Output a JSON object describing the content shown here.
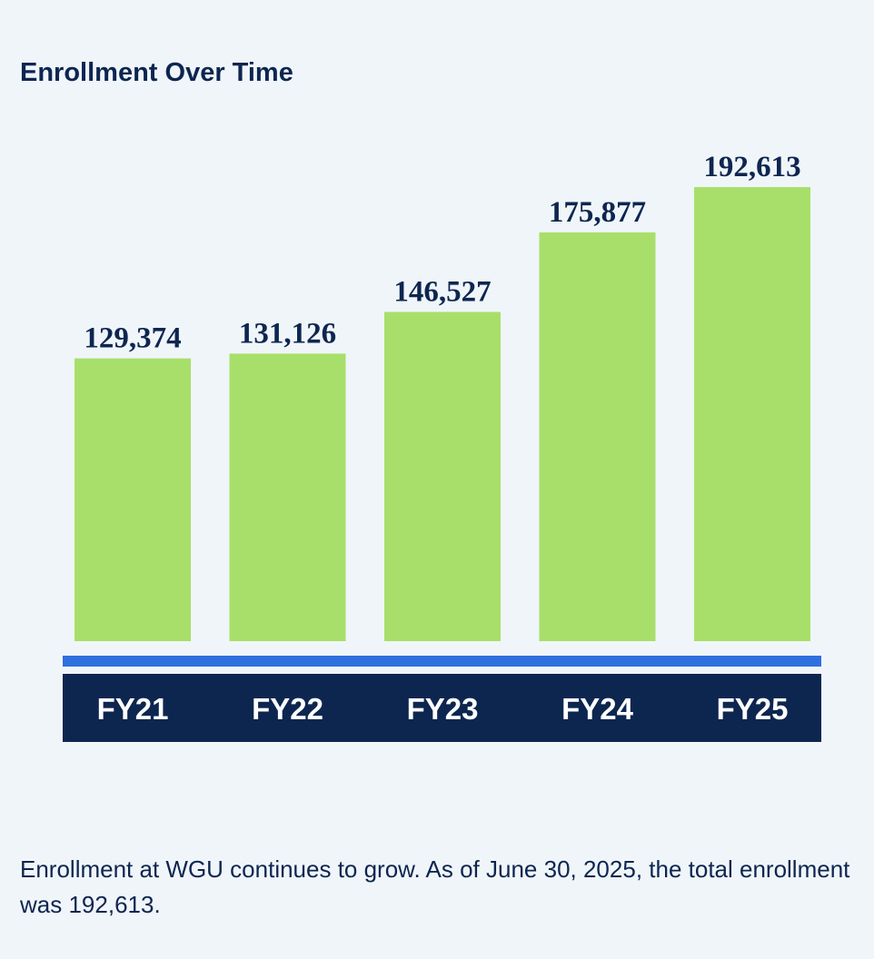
{
  "chart_data": {
    "type": "bar",
    "title": "Enrollment Over Time",
    "categories": [
      "FY21",
      "FY22",
      "FY23",
      "FY24",
      "FY25"
    ],
    "values": [
      129374,
      131126,
      146527,
      175877,
      192613
    ],
    "labels": [
      "129,374",
      "131,126",
      "146,527",
      "175,877",
      "192,613"
    ],
    "xlabel": "",
    "ylabel": "",
    "ylim": [
      25000,
      195000
    ],
    "grid": false,
    "colors": {
      "bar": "#a8df6a",
      "axis_line": "#2f6fe0",
      "axis_band": "#0d2650",
      "label": "#0d2650"
    }
  },
  "caption": "Enrollment at WGU continues to grow. As of June 30, 2025, the total enrollment was 192,613."
}
